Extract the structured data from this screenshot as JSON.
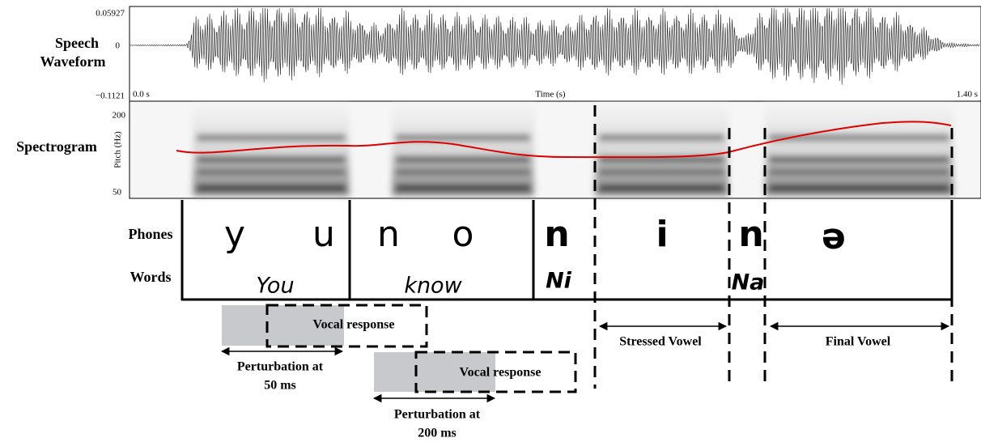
{
  "waveform": {
    "label": [
      "Speech",
      "Waveform"
    ],
    "y_max": "0.05927",
    "y_zero": "0",
    "y_min": "−0.1121",
    "time_start": "0.0 s",
    "time_axis": "Time (s)",
    "time_end": "1.40 s"
  },
  "spectrogram": {
    "label": "Spectrogram",
    "axis_label": "Pitch (Hz)",
    "tick_top": "200",
    "tick_bottom": "50"
  },
  "tiers": {
    "phones_label": "Phones",
    "phones": [
      "y",
      "u",
      "n",
      "o",
      "n",
      "i",
      "n",
      "ə"
    ],
    "words_label": "Words",
    "words": [
      "You",
      "know",
      "Ni",
      "Na"
    ]
  },
  "annotations": {
    "perturbations": [
      {
        "response": "Vocal response",
        "label": [
          "Perturbation at",
          "50 ms"
        ]
      },
      {
        "response": "Vocal response",
        "label": [
          "Perturbation at",
          "200 ms"
        ]
      }
    ],
    "stressed_vowel": "Stressed Vowel",
    "final_vowel": "Final Vowel"
  }
}
